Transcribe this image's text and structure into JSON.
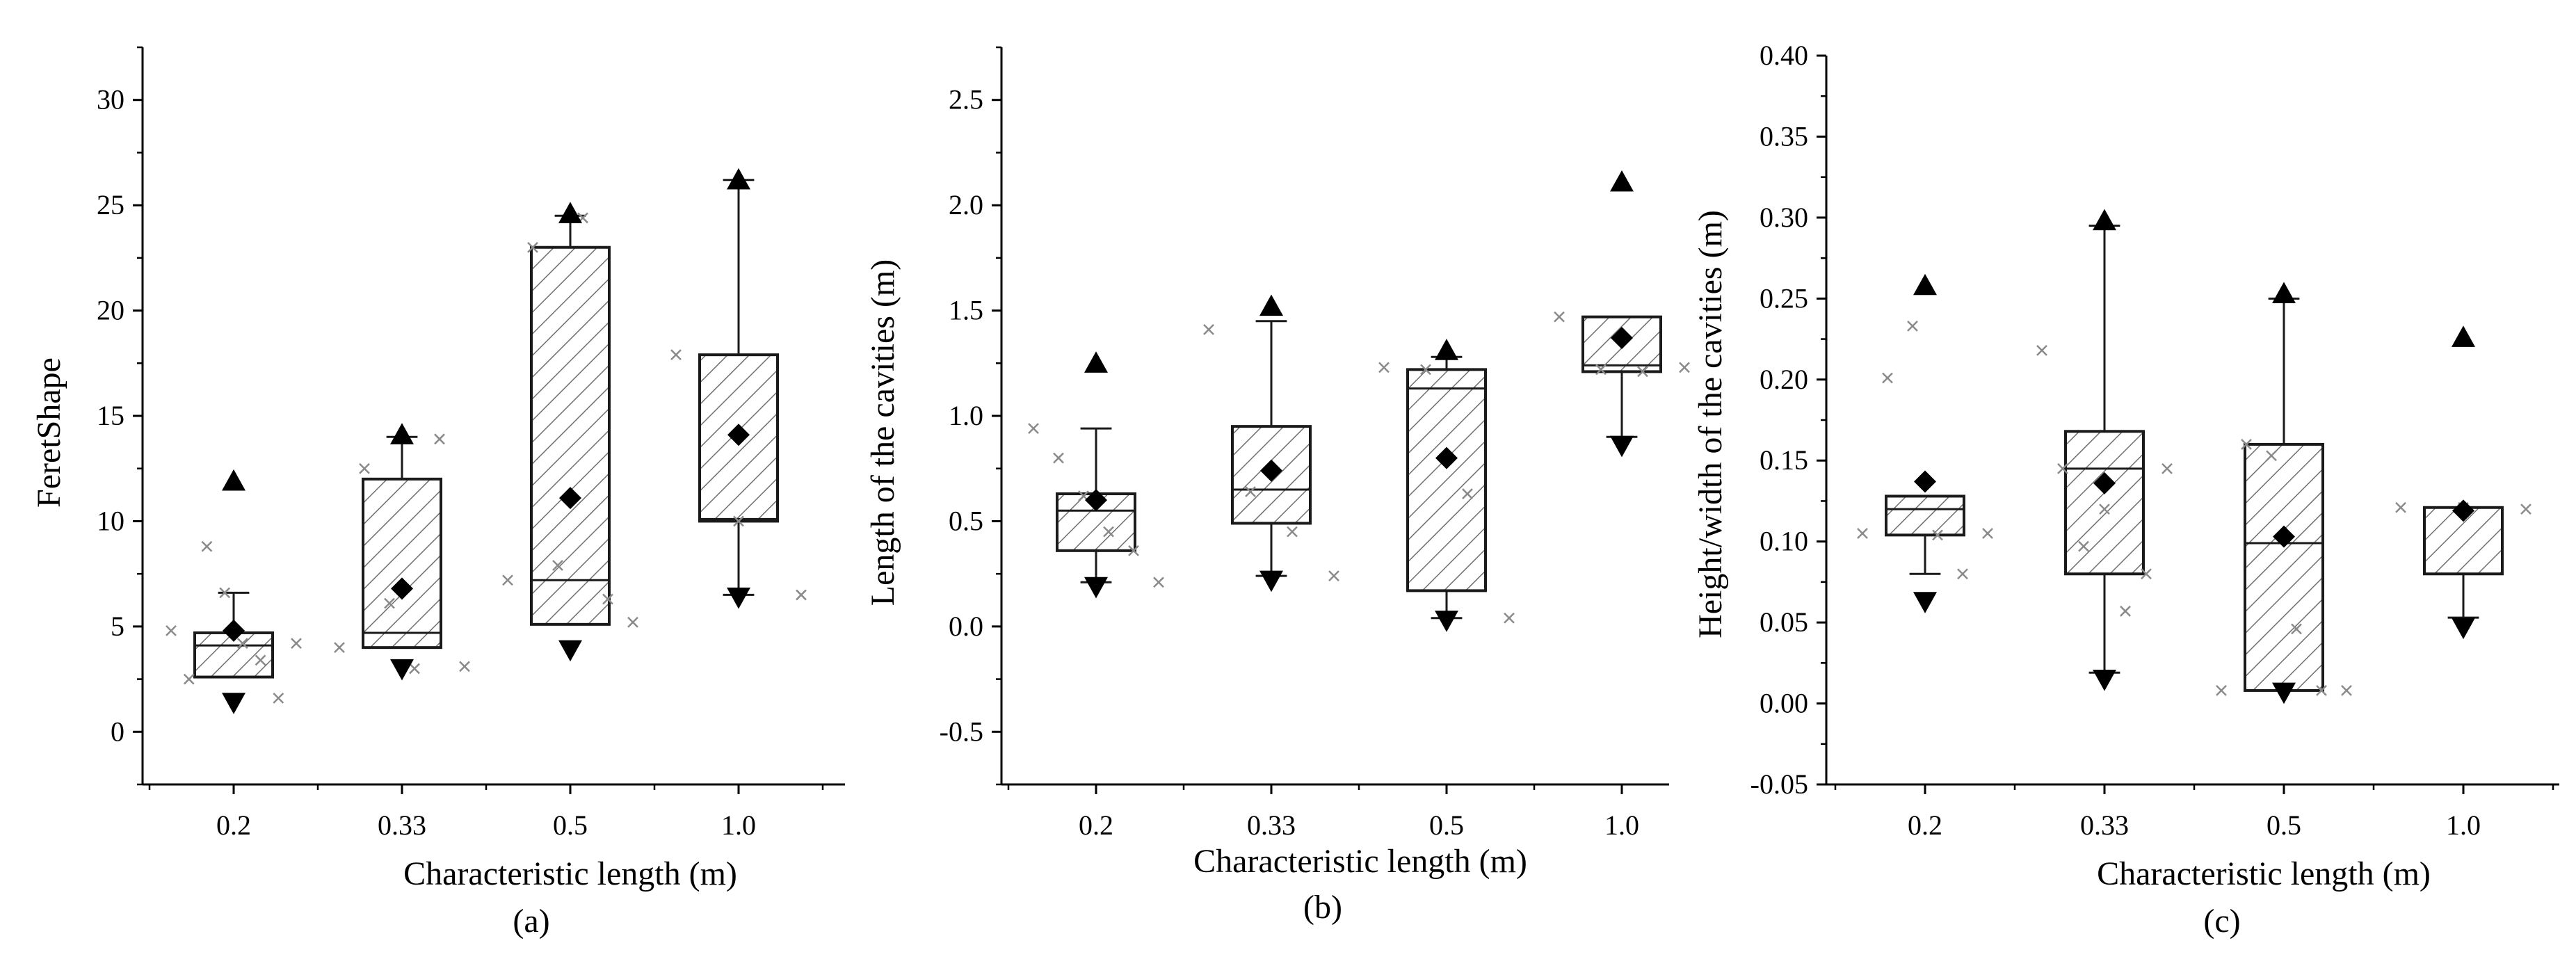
{
  "colors": {
    "axis": "#000000",
    "box_stroke": "#1a1a1a",
    "hatch": "#6f6f6f",
    "scatter": "#8a8a8a",
    "marker": "#000000"
  },
  "chart_data": [
    {
      "type": "box",
      "panel": "(a)",
      "xlabel": "Characteristic length (m)",
      "ylabel": "FeretShape",
      "categories": [
        "0.2",
        "0.33",
        "0.5",
        "1.0"
      ],
      "ylim": [
        -2.5,
        32.5
      ],
      "yticks": [
        0,
        5,
        10,
        15,
        20,
        25,
        30
      ],
      "ytick_labels": [
        "0",
        "5",
        "10",
        "15",
        "20",
        "25",
        "30"
      ],
      "boxes": [
        {
          "category": "0.2",
          "q1": 2.6,
          "median": 4.1,
          "q3": 4.7,
          "whisker_low": 2.6,
          "whisker_high": 6.6,
          "mean": 4.8,
          "max": 11.9,
          "min": 1.4,
          "points": [
            4.8,
            2.5,
            8.8,
            6.6,
            4.2,
            3.4,
            1.6,
            4.2
          ]
        },
        {
          "category": "0.33",
          "q1": 4.0,
          "median": 4.7,
          "q3": 12.0,
          "whisker_low": 4.0,
          "whisker_high": 14.0,
          "mean": 6.8,
          "max": 14.1,
          "min": 3.0,
          "points": [
            4.0,
            12.5,
            6.1,
            3.0,
            13.9,
            3.1
          ]
        },
        {
          "category": "0.5",
          "q1": 5.1,
          "median": 7.2,
          "q3": 23.0,
          "whisker_low": 5.1,
          "whisker_high": 24.5,
          "mean": 11.1,
          "max": 24.6,
          "min": 3.9,
          "points": [
            7.2,
            23.0,
            7.9,
            24.4,
            6.3,
            5.2
          ]
        },
        {
          "category": "1.0",
          "q1": 10.0,
          "median": 10.1,
          "q3": 17.9,
          "whisker_low": 6.5,
          "whisker_high": 26.2,
          "mean": 14.1,
          "max": 26.2,
          "min": 6.4,
          "points": [
            17.9,
            10.0,
            6.5
          ]
        }
      ]
    },
    {
      "type": "box",
      "panel": "(b)",
      "xlabel": "Characteristic length (m)",
      "ylabel": "Length of the cavities (m)",
      "categories": [
        "0.2",
        "0.33",
        "0.5",
        "1.0"
      ],
      "ylim": [
        -0.75,
        2.75
      ],
      "yticks": [
        -0.5,
        0.0,
        0.5,
        1.0,
        1.5,
        2.0,
        2.5
      ],
      "ytick_labels": [
        "-0.5",
        "0.0",
        "0.5",
        "1.0",
        "1.5",
        "2.0",
        "2.5"
      ],
      "boxes": [
        {
          "category": "0.2",
          "q1": 0.36,
          "median": 0.55,
          "q3": 0.63,
          "whisker_low": 0.21,
          "whisker_high": 0.94,
          "mean": 0.6,
          "max": 1.25,
          "min": 0.19,
          "points": [
            0.94,
            0.8,
            0.62,
            0.45,
            0.36,
            0.21
          ]
        },
        {
          "category": "0.33",
          "q1": 0.49,
          "median": 0.65,
          "q3": 0.95,
          "whisker_low": 0.24,
          "whisker_high": 1.45,
          "mean": 0.74,
          "max": 1.52,
          "min": 0.22,
          "points": [
            1.41,
            0.64,
            0.45,
            0.24
          ]
        },
        {
          "category": "0.5",
          "q1": 0.17,
          "median": 1.13,
          "q3": 1.22,
          "whisker_low": 0.04,
          "whisker_high": 1.28,
          "mean": 0.8,
          "max": 1.31,
          "min": 0.03,
          "points": [
            1.23,
            1.22,
            0.63,
            0.04
          ]
        },
        {
          "category": "1.0",
          "q1": 1.21,
          "median": 1.24,
          "q3": 1.47,
          "whisker_low": 0.9,
          "whisker_high": 1.47,
          "mean": 1.37,
          "max": 2.11,
          "min": 0.86,
          "points": [
            1.47,
            1.22,
            1.21,
            1.23
          ]
        }
      ]
    },
    {
      "type": "box",
      "panel": "(c)",
      "xlabel": "Characteristic length (m)",
      "ylabel": "Height/width of the cavities (m)",
      "categories": [
        "0.2",
        "0.33",
        "0.5",
        "1.0"
      ],
      "ylim": [
        -0.05,
        0.4
      ],
      "yticks": [
        -0.05,
        0.0,
        0.05,
        0.1,
        0.15,
        0.2,
        0.25,
        0.3,
        0.35,
        0.4
      ],
      "ytick_labels": [
        "-0.05",
        "0.00",
        "0.05",
        "0.10",
        "0.15",
        "0.20",
        "0.25",
        "0.30",
        "0.35",
        "0.40"
      ],
      "boxes": [
        {
          "category": "0.2",
          "q1": 0.104,
          "median": 0.12,
          "q3": 0.128,
          "whisker_low": 0.08,
          "whisker_high": 0.128,
          "mean": 0.137,
          "max": 0.258,
          "min": 0.063,
          "points": [
            0.105,
            0.201,
            0.233,
            0.104,
            0.08,
            0.105
          ]
        },
        {
          "category": "0.33",
          "q1": 0.08,
          "median": 0.145,
          "q3": 0.168,
          "whisker_low": 0.019,
          "whisker_high": 0.295,
          "mean": 0.136,
          "max": 0.298,
          "min": 0.015,
          "points": [
            0.218,
            0.145,
            0.097,
            0.12,
            0.057,
            0.08,
            0.145
          ]
        },
        {
          "category": "0.5",
          "q1": 0.008,
          "median": 0.099,
          "q3": 0.16,
          "whisker_low": 0.008,
          "whisker_high": 0.25,
          "mean": 0.103,
          "max": 0.253,
          "min": 0.007,
          "points": [
            0.008,
            0.16,
            0.153,
            0.046,
            0.008,
            0.008
          ]
        },
        {
          "category": "1.0",
          "q1": 0.08,
          "median": 0.121,
          "q3": 0.121,
          "whisker_low": 0.053,
          "whisker_high": 0.121,
          "mean": 0.119,
          "max": 0.226,
          "min": 0.047,
          "points": [
            0.121,
            0.121,
            0.12
          ]
        }
      ]
    }
  ]
}
